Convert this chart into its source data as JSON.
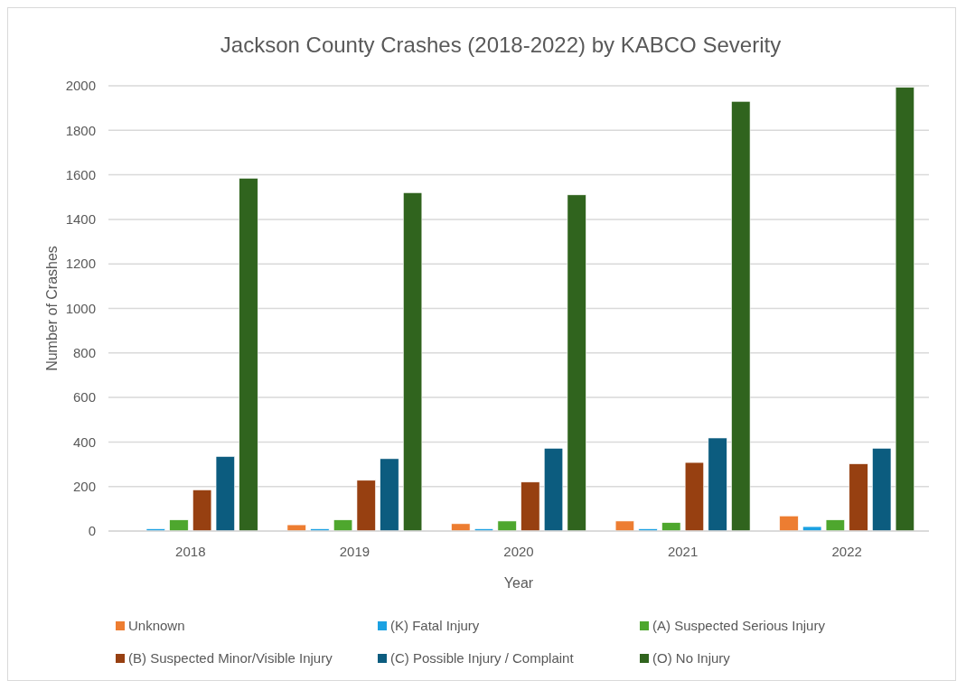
{
  "chart_data": {
    "type": "bar",
    "title": "Jackson County Crashes (2018-2022) by KABCO Severity",
    "xlabel": "Year",
    "ylabel": "Number of Crashes",
    "categories": [
      "2018",
      "2019",
      "2020",
      "2021",
      "2022"
    ],
    "series": [
      {
        "name": "Unknown",
        "color": "#ed7d31",
        "values": [
          0,
          28,
          33,
          45,
          68
        ]
      },
      {
        "name": "(K) Fatal Injury",
        "color": "#1ba1e2",
        "values": [
          10,
          10,
          10,
          10,
          20
        ]
      },
      {
        "name": "(A) Suspected Serious Injury",
        "color": "#4ea72e",
        "values": [
          50,
          50,
          45,
          38,
          50
        ]
      },
      {
        "name": "(B) Suspected Minor/Visible Injury",
        "color": "#974011",
        "values": [
          185,
          228,
          220,
          308,
          302
        ]
      },
      {
        "name": "(C) Possible Injury / Complaint",
        "color": "#0c5c7f",
        "values": [
          335,
          325,
          372,
          418,
          372
        ]
      },
      {
        "name": "(O) No Injury",
        "color": "#30641e",
        "values": [
          1585,
          1520,
          1510,
          1930,
          1993
        ]
      }
    ],
    "ylim": [
      0,
      2000
    ],
    "yticks": [
      0,
      200,
      400,
      600,
      800,
      1000,
      1200,
      1400,
      1600,
      1800,
      2000
    ],
    "grid": "y",
    "legend": "bottom"
  }
}
